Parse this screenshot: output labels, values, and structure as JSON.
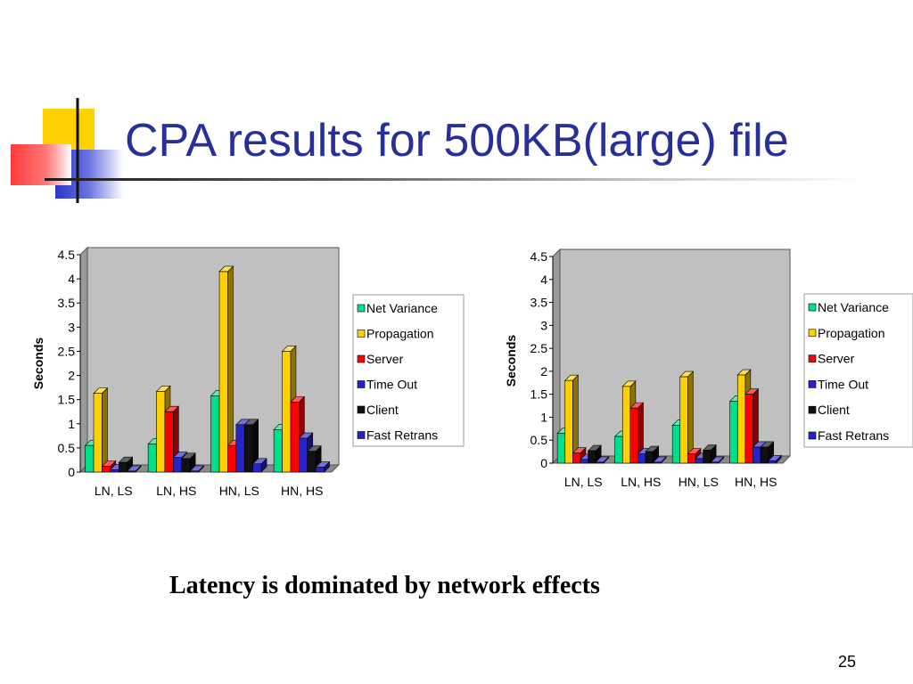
{
  "slide": {
    "title": "CPA results for 500KB(large) file",
    "caption": "Latency is dominated by network effects",
    "page_number": "25"
  },
  "colors": {
    "title": "#27309a",
    "plot_background": "#c0c0c0",
    "deco_yellow": "#ffd200",
    "deco_red": "#ff3b3b",
    "deco_blue": "#2b36c8"
  },
  "chart_data": [
    {
      "type": "bar",
      "style": "3d-clustered",
      "ylabel": "Seconds",
      "ylim": [
        0,
        4.5
      ],
      "yticks": [
        "0",
        "0.5",
        "1",
        "1.5",
        "2",
        "2.5",
        "3",
        "3.5",
        "4",
        "4.5"
      ],
      "categories": [
        "LN, LS",
        "LN, HS",
        "HN, LS",
        "HN, HS"
      ],
      "legend_position": "right",
      "series": [
        {
          "name": "Net Variance",
          "color": "#00e08a",
          "values": [
            0.55,
            0.58,
            1.58,
            0.88
          ]
        },
        {
          "name": "Propagation",
          "color": "#ffd000",
          "values": [
            1.63,
            1.67,
            4.15,
            2.5
          ]
        },
        {
          "name": "Server",
          "color": "#ff0000",
          "values": [
            0.12,
            1.25,
            0.55,
            1.45
          ]
        },
        {
          "name": "Time Out",
          "color": "#2424c8",
          "values": [
            0.05,
            0.3,
            0.98,
            0.7
          ]
        },
        {
          "name": "Client",
          "color": "#111111",
          "values": [
            0.2,
            0.28,
            0.98,
            0.43
          ]
        },
        {
          "name": "Fast Retrans",
          "color": "#2424c8",
          "values": [
            0.02,
            0.02,
            0.17,
            0.1
          ]
        }
      ]
    },
    {
      "type": "bar",
      "style": "3d-clustered",
      "ylabel": "Seconds",
      "ylim": [
        0,
        4.5
      ],
      "yticks": [
        "0",
        "0.5",
        "1",
        "1.5",
        "2",
        "2.5",
        "3",
        "3.5",
        "4",
        "4.5"
      ],
      "categories": [
        "LN, LS",
        "LN, HS",
        "HN, LS",
        "HN, HS"
      ],
      "legend_position": "right",
      "series": [
        {
          "name": "Net Variance",
          "color": "#00e08a",
          "values": [
            0.65,
            0.58,
            0.82,
            1.35
          ]
        },
        {
          "name": "Propagation",
          "color": "#ffd000",
          "values": [
            1.8,
            1.67,
            1.88,
            1.92
          ]
        },
        {
          "name": "Server",
          "color": "#ff0000",
          "values": [
            0.22,
            1.2,
            0.2,
            1.5
          ]
        },
        {
          "name": "Time Out",
          "color": "#2424c8",
          "values": [
            0.08,
            0.2,
            0.1,
            0.35
          ]
        },
        {
          "name": "Client",
          "color": "#111111",
          "values": [
            0.27,
            0.25,
            0.28,
            0.35
          ]
        },
        {
          "name": "Fast Retrans",
          "color": "#2424c8",
          "values": [
            0.02,
            0.02,
            0.02,
            0.05
          ]
        }
      ]
    }
  ]
}
